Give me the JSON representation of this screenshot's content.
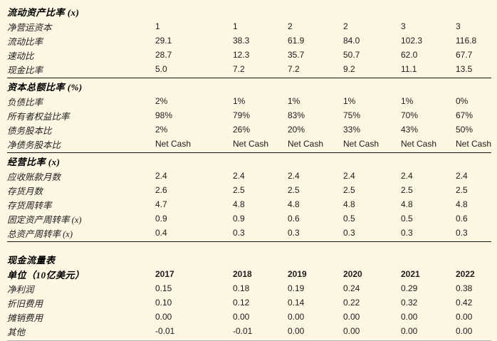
{
  "colors": {
    "background": "#fdf6e3",
    "section_rule": "#141414",
    "bottom_rule": "#b5b5ab",
    "text": "#1c1c1c"
  },
  "table": {
    "sections": [
      {
        "header": "流动资产比率 (x)",
        "rows": [
          {
            "label": "净营运资本",
            "values": [
              "1",
              "1",
              "2",
              "2",
              "3",
              "3"
            ]
          },
          {
            "label": "流动比率",
            "values": [
              "29.1",
              "38.3",
              "61.9",
              "84.0",
              "102.3",
              "116.8"
            ]
          },
          {
            "label": "速动比",
            "values": [
              "28.7",
              "12.3",
              "35.7",
              "50.7",
              "62.0",
              "67.7"
            ]
          },
          {
            "label": "现金比率",
            "values": [
              "5.0",
              "7.2",
              "7.2",
              "9.2",
              "11.1",
              "13.5"
            ]
          }
        ]
      },
      {
        "header": "资本总额比率 (%)",
        "rows": [
          {
            "label": "负债比率",
            "values": [
              "2%",
              "1%",
              "1%",
              "1%",
              "1%",
              "0%"
            ]
          },
          {
            "label": "所有者权益比率",
            "values": [
              "98%",
              "79%",
              "83%",
              "75%",
              "70%",
              "67%"
            ]
          },
          {
            "label": "债务股本比",
            "values": [
              "2%",
              "26%",
              "20%",
              "33%",
              "43%",
              "50%"
            ]
          },
          {
            "label": "净债务股本比",
            "values": [
              "Net Cash",
              "Net Cash",
              "Net Cash",
              "Net Cash",
              "Net Cash",
              "Net Cash"
            ]
          }
        ]
      },
      {
        "header": "经营比率 (x)",
        "rows": [
          {
            "label": "应收账款月数",
            "values": [
              "2.4",
              "2.4",
              "2.4",
              "2.4",
              "2.4",
              "2.4"
            ]
          },
          {
            "label": "存货月数",
            "values": [
              "2.6",
              "2.5",
              "2.5",
              "2.5",
              "2.5",
              "2.5"
            ]
          },
          {
            "label": "存货周转率",
            "values": [
              "4.7",
              "4.8",
              "4.8",
              "4.8",
              "4.8",
              "4.8"
            ]
          },
          {
            "label": "固定资产周转率 (x)",
            "values": [
              "0.9",
              "0.9",
              "0.6",
              "0.5",
              "0.5",
              "0.6"
            ]
          },
          {
            "label": "总资产周转率 (x)",
            "values": [
              "0.4",
              "0.3",
              "0.3",
              "0.3",
              "0.3",
              "0.3"
            ]
          }
        ]
      },
      {
        "header": "现金流量表",
        "subheader": {
          "label": "单位（10亿美元）",
          "values": [
            "2017",
            "2018",
            "2019",
            "2020",
            "2021",
            "2022"
          ]
        },
        "rows": [
          {
            "label": "净利润",
            "values": [
              "0.15",
              "0.18",
              "0.19",
              "0.24",
              "0.29",
              "0.38"
            ]
          },
          {
            "label": "折旧费用",
            "values": [
              "0.10",
              "0.12",
              "0.14",
              "0.22",
              "0.32",
              "0.42"
            ]
          },
          {
            "label": "摊销费用",
            "values": [
              "0.00",
              "0.00",
              "0.00",
              "0.00",
              "0.00",
              "0.00"
            ]
          },
          {
            "label": "其他",
            "values": [
              "-0.01",
              "-0.01",
              "0.00",
              "0.00",
              "0.00",
              "0.00"
            ]
          }
        ]
      }
    ]
  }
}
